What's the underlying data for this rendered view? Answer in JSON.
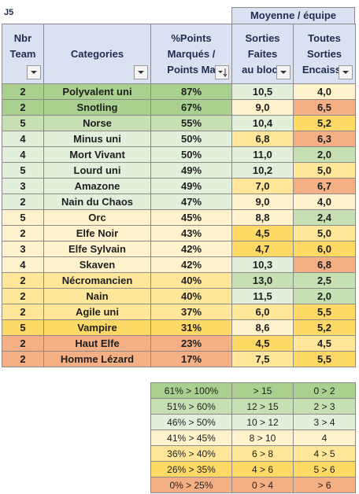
{
  "sheet": {
    "cell_label": "J5",
    "group_header": "Moyenne / équipe",
    "columns": [
      [
        "Nbr",
        "Team"
      ],
      [
        "Categories"
      ],
      [
        "%Points",
        "Marqués /",
        "Points Ma"
      ],
      [
        "Sorties",
        "Faites",
        "au bloca"
      ],
      [
        "Toutes",
        "Sorties",
        "Encaisse"
      ]
    ],
    "rows": [
      [
        "2",
        "Polyvalent uni",
        "87%",
        "10,5",
        "4,0"
      ],
      [
        "2",
        "Snotling",
        "67%",
        "9,0",
        "6,5"
      ],
      [
        "5",
        "Norse",
        "55%",
        "10,4",
        "5,2"
      ],
      [
        "4",
        "Minus uni",
        "50%",
        "6,8",
        "6,3"
      ],
      [
        "4",
        "Mort Vivant",
        "50%",
        "11,0",
        "2,0"
      ],
      [
        "5",
        "Lourd uni",
        "49%",
        "10,2",
        "5,0"
      ],
      [
        "3",
        "Amazone",
        "49%",
        "7,0",
        "6,7"
      ],
      [
        "2",
        "Nain du Chaos",
        "47%",
        "9,0",
        "4,0"
      ],
      [
        "5",
        "Orc",
        "45%",
        "8,8",
        "2,4"
      ],
      [
        "2",
        "Elfe Noir",
        "43%",
        "4,5",
        "5,0"
      ],
      [
        "3",
        "Elfe Sylvain",
        "42%",
        "4,7",
        "6,0"
      ],
      [
        "4",
        "Skaven",
        "42%",
        "10,3",
        "6,8"
      ],
      [
        "2",
        "Nécromancien",
        "40%",
        "13,0",
        "2,5"
      ],
      [
        "2",
        "Nain",
        "40%",
        "11,5",
        "2,0"
      ],
      [
        "2",
        "Agile uni",
        "37%",
        "6,0",
        "5,5"
      ],
      [
        "5",
        "Vampire",
        "31%",
        "8,6",
        "5,2"
      ],
      [
        "2",
        "Haut Elfe",
        "23%",
        "4,5",
        "4,5"
      ],
      [
        "2",
        "Homme Lézard",
        "17%",
        "7,5",
        "5,5"
      ]
    ],
    "legend": [
      [
        "61% > 100%",
        "> 15",
        "0 > 2"
      ],
      [
        "51% > 60%",
        "12 > 15",
        "2 > 3"
      ],
      [
        "46% > 50%",
        "10 > 12",
        "3 > 4"
      ],
      [
        "41% > 45%",
        "8 > 10",
        "4"
      ],
      [
        "36% > 40%",
        "6 > 8",
        "4 > 5"
      ],
      [
        "26% > 35%",
        "4 > 6",
        "5 > 6"
      ],
      [
        "0% > 25%",
        "0 > 4",
        "> 6"
      ]
    ]
  }
}
